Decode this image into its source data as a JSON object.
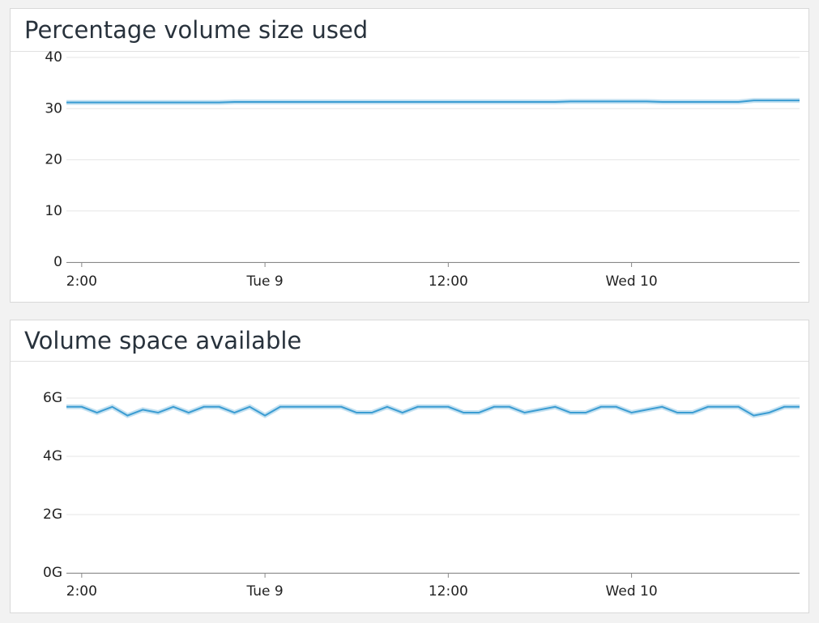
{
  "chart_data": [
    {
      "type": "line",
      "title": "Percentage volume size used",
      "x": [
        11,
        12,
        13,
        14,
        15,
        16,
        17,
        18,
        19,
        20,
        21,
        22,
        23,
        24,
        25,
        26,
        27,
        28,
        29,
        30,
        31,
        32,
        33,
        34,
        35,
        36,
        37,
        38,
        39,
        40,
        41,
        42,
        43,
        44,
        45,
        46,
        47,
        48,
        49,
        50,
        51,
        52,
        53,
        54,
        55,
        56,
        57,
        58,
        59
      ],
      "values": [
        31.2,
        31.2,
        31.2,
        31.2,
        31.2,
        31.2,
        31.2,
        31.2,
        31.2,
        31.2,
        31.2,
        31.3,
        31.3,
        31.3,
        31.3,
        31.3,
        31.3,
        31.3,
        31.3,
        31.3,
        31.3,
        31.3,
        31.3,
        31.3,
        31.3,
        31.3,
        31.3,
        31.3,
        31.3,
        31.3,
        31.3,
        31.3,
        31.3,
        31.4,
        31.4,
        31.4,
        31.4,
        31.4,
        31.4,
        31.3,
        31.3,
        31.3,
        31.3,
        31.3,
        31.3,
        31.6,
        31.6,
        31.6,
        31.6
      ],
      "color": "#3a9cd2",
      "xlim": [
        11,
        59
      ],
      "xticks": [
        {
          "value": 12,
          "label": "2:00"
        },
        {
          "value": 24,
          "label": "Tue 9"
        },
        {
          "value": 36,
          "label": "12:00"
        },
        {
          "value": 48,
          "label": "Wed 10"
        }
      ],
      "ylim": [
        0,
        40
      ],
      "yticks": [
        0,
        10,
        20,
        30,
        40
      ],
      "grid": true
    },
    {
      "type": "line",
      "title": "Volume space available",
      "x": [
        11,
        12,
        13,
        14,
        15,
        16,
        17,
        18,
        19,
        20,
        21,
        22,
        23,
        24,
        25,
        26,
        27,
        28,
        29,
        30,
        31,
        32,
        33,
        34,
        35,
        36,
        37,
        38,
        39,
        40,
        41,
        42,
        43,
        44,
        45,
        46,
        47,
        48,
        49,
        50,
        51,
        52,
        53,
        54,
        55,
        56,
        57,
        58,
        59
      ],
      "values": [
        5.7,
        5.7,
        5.5,
        5.7,
        5.4,
        5.6,
        5.5,
        5.7,
        5.5,
        5.7,
        5.7,
        5.5,
        5.7,
        5.4,
        5.7,
        5.7,
        5.7,
        5.7,
        5.7,
        5.5,
        5.5,
        5.7,
        5.5,
        5.7,
        5.7,
        5.7,
        5.5,
        5.5,
        5.7,
        5.7,
        5.5,
        5.6,
        5.7,
        5.5,
        5.5,
        5.7,
        5.7,
        5.5,
        5.6,
        5.7,
        5.5,
        5.5,
        5.7,
        5.7,
        5.7,
        5.4,
        5.5,
        5.7,
        5.7
      ],
      "color": "#3a9cd2",
      "xlim": [
        11,
        59
      ],
      "xticks": [
        {
          "value": 12,
          "label": "2:00"
        },
        {
          "value": 24,
          "label": "Tue 9"
        },
        {
          "value": 36,
          "label": "12:00"
        },
        {
          "value": 48,
          "label": "Wed 10"
        }
      ],
      "ylim": [
        0,
        7.25
      ],
      "yticks": [
        {
          "value": 0,
          "label": "0G"
        },
        {
          "value": 2,
          "label": "2G"
        },
        {
          "value": 4,
          "label": "4G"
        },
        {
          "value": 6,
          "label": "6G"
        }
      ],
      "grid": true
    }
  ]
}
